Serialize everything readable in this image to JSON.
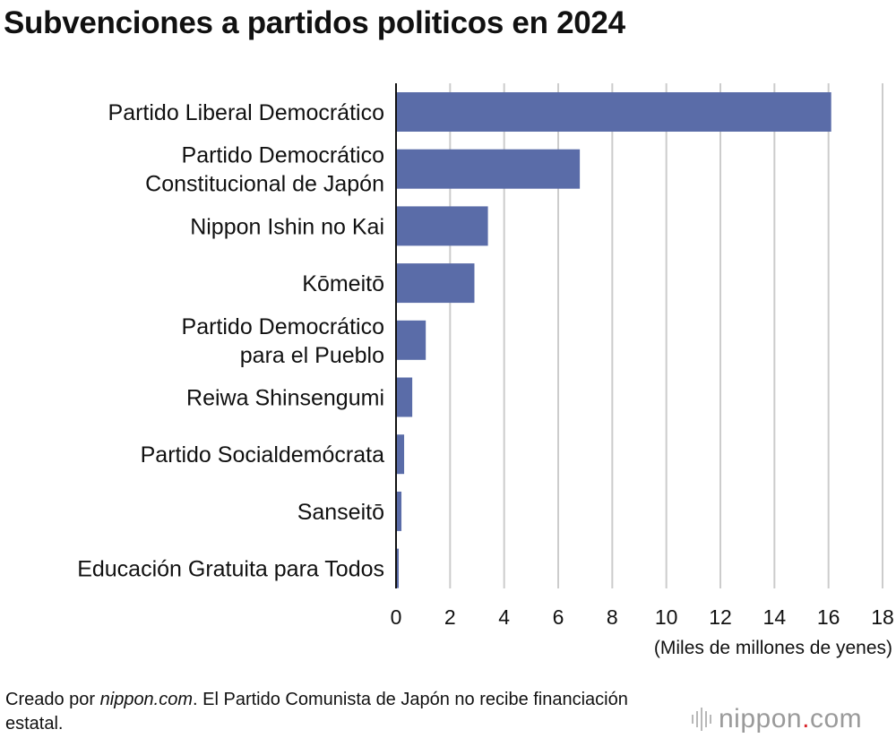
{
  "footer": {
    "prefix": "Creado por ",
    "source": "nippon.com",
    "note": ". El Partido Comunista de Japón no recibe financiación estatal."
  },
  "logo": {
    "name": "nippon",
    "dot": ".",
    "tld": "com",
    "icon": "soundwave-bars-icon"
  },
  "colors": {
    "bar": "#5a6ca8",
    "grid": "#cccccc",
    "axis": "#111111"
  },
  "chart_data": {
    "type": "bar",
    "orientation": "horizontal",
    "title": "Subvenciones a partidos politicos en 2024",
    "xlabel": "(Miles de millones de yenes)",
    "ylabel": "",
    "xlim": [
      0,
      18
    ],
    "xticks": [
      0,
      2,
      4,
      6,
      8,
      10,
      12,
      14,
      16,
      18
    ],
    "grid": true,
    "categories": [
      [
        "Partido Liberal Democrático"
      ],
      [
        "Partido Democrático",
        "Constitucional de Japón"
      ],
      [
        "Nippon Ishin no Kai"
      ],
      [
        "Kōmeitō"
      ],
      [
        "Partido Democrático",
        "para el Pueblo"
      ],
      [
        "Reiwa Shinsengumi"
      ],
      [
        "Partido Socialdemócrata"
      ],
      [
        "Sanseitō"
      ],
      [
        "Educación Gratuita para Todos"
      ]
    ],
    "values": [
      16.1,
      6.8,
      3.4,
      2.9,
      1.1,
      0.6,
      0.3,
      0.2,
      0.1
    ]
  }
}
